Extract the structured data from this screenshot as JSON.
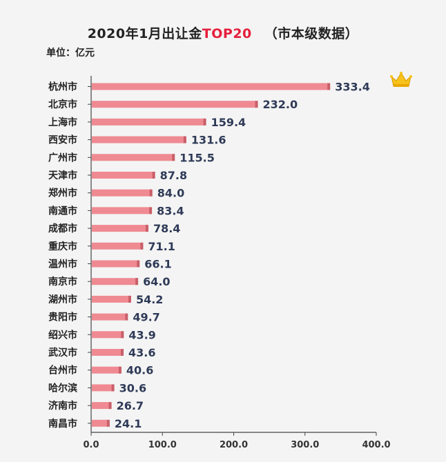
{
  "title": {
    "part1": "2020年1月出让金",
    "accent": "TOP20",
    "part2": "（市本级数据）"
  },
  "unit": "单位：亿元",
  "colors": {
    "bar": "#ef8a92",
    "bar_shade": "#c95f69",
    "accent": "#e5203c",
    "value_text": "#2e3a57"
  },
  "icons": {
    "top_rank": "crown-icon"
  },
  "chart_data": {
    "type": "bar",
    "orientation": "horizontal",
    "categories": [
      "杭州市",
      "北京市",
      "上海市",
      "西安市",
      "广州市",
      "天津市",
      "郑州市",
      "南通市",
      "成都市",
      "重庆市",
      "温州市",
      "南京市",
      "湖州市",
      "贵阳市",
      "绍兴市",
      "武汉市",
      "台州市",
      "哈尔滨",
      "济南市",
      "南昌市"
    ],
    "values": [
      333.4,
      232.0,
      159.4,
      131.6,
      115.5,
      87.8,
      84.0,
      83.4,
      78.4,
      71.1,
      66.1,
      64.0,
      54.2,
      49.7,
      43.9,
      43.6,
      40.6,
      30.6,
      26.7,
      24.1
    ],
    "value_labels": [
      "333.4",
      "232.0",
      "159.4",
      "131.6",
      "115.5",
      "87.8",
      "84.0",
      "83.4",
      "78.4",
      "71.1",
      "66.1",
      "64.0",
      "54.2",
      "49.7",
      "43.9",
      "43.6",
      "40.6",
      "30.6",
      "26.7",
      "24.1"
    ],
    "xlim": [
      0,
      400
    ],
    "xticks": [
      0,
      100,
      200,
      300,
      400
    ],
    "xtick_labels": [
      "0.0",
      "100.0",
      "200.0",
      "300.0",
      "400.0"
    ],
    "grid": false,
    "legend": "none"
  }
}
